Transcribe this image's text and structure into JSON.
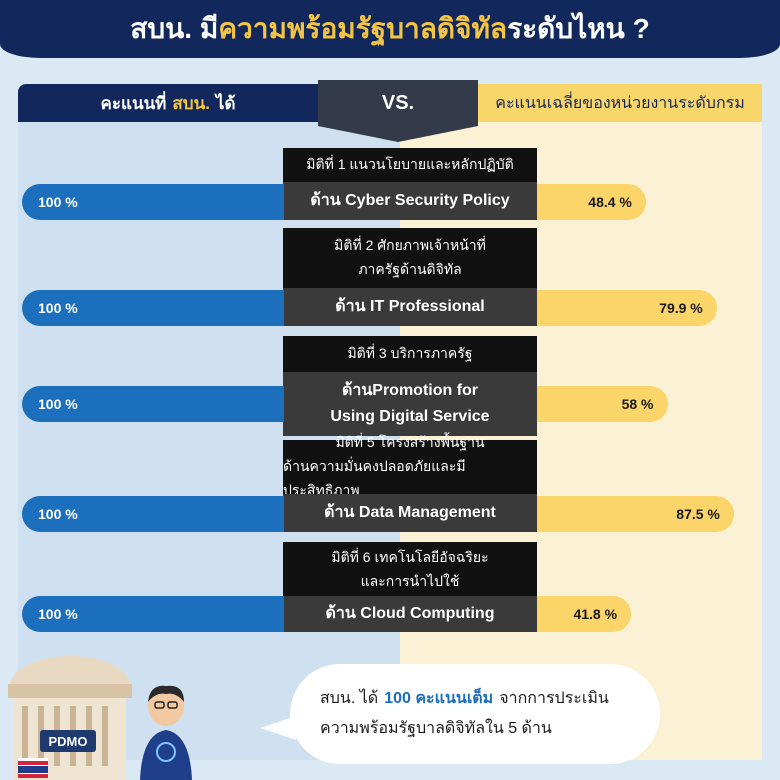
{
  "header": {
    "prefix": "สบน. มี",
    "highlight": "ความพร้อมรัฐบาลดิจิทัล",
    "suffix": "ระดับไหน ?"
  },
  "compare": {
    "left_prefix": "คะแนนที่",
    "left_highlight": "สบน.",
    "left_suffix": "ได้",
    "vs": "VS.",
    "right": "คะแนนเฉลี่ยของหน่วยงานระดับกรม"
  },
  "chart_data": {
    "type": "bar",
    "categories": [
      "ด้าน Cyber Security Policy",
      "ด้าน IT Professional",
      "ด้านPromotion for Using Digital Service",
      "ด้าน Data Management",
      "ด้าน Cloud Computing"
    ],
    "dimension_labels": [
      [
        "มิติที่ 1 แนวนโยบายและหลักปฏิบัติ"
      ],
      [
        "มิติที่ 2 ศักยภาพเจ้าหน้าที่",
        "ภาครัฐด้านดิจิทัล"
      ],
      [
        "มิติที่ 3 บริการภาครัฐ"
      ],
      [
        "มิติที่ 5 โครงสร้างพื้นฐาน",
        "ด้านความมั่นคงปลอดภัยและมีประสิทธิภาพ"
      ],
      [
        "มิติที่ 6 เทคโนโลยีอัจฉริยะ",
        "และการนำไปใช้"
      ]
    ],
    "series": [
      {
        "values": [
          100,
          100,
          100,
          100,
          100
        ],
        "labels": [
          "100 %",
          "100 %",
          "100 %",
          "100 %",
          "100 %"
        ],
        "color": "#1c6fbd"
      },
      {
        "values": [
          48.4,
          79.9,
          58,
          87.5,
          41.8
        ],
        "labels": [
          "48.4 %",
          "79.9 %",
          "58 %",
          "87.5 %",
          "41.8 %"
        ],
        "color": "#fbd46a"
      }
    ]
  },
  "footer": {
    "plate": "PDMO",
    "line1_prefix": "สบน. ได้",
    "line1_highlight": "100 คะแนนเต็ม",
    "line1_suffix": "จากการประเมิน",
    "line2": "ความพร้อมรัฐบาลดิจิทัลใน 5 ด้าน"
  }
}
